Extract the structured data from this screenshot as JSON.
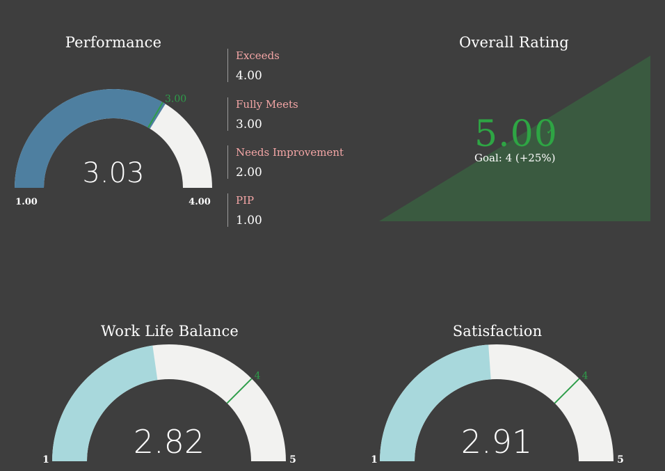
{
  "performance": {
    "title": "Performance",
    "value": 3.03,
    "value_label": "3.03",
    "min": 1,
    "max": 4,
    "min_label": "1.00",
    "max_label": "4.00",
    "target": 3.0,
    "target_label": "3.00",
    "fill_color": "#4e7fa0",
    "legend": [
      {
        "name": "Exceeds",
        "value": "4.00"
      },
      {
        "name": "Fully Meets",
        "value": "3.00"
      },
      {
        "name": "Needs Improvement",
        "value": "2.00"
      },
      {
        "name": "PIP",
        "value": "1.00"
      }
    ]
  },
  "overall_rating": {
    "title": "Overall Rating",
    "value": "5.00",
    "check_icon": "checkmark-icon",
    "goal": "Goal: 4 (+25%)",
    "area_color": "#3a5a40",
    "value_color": "#2ea544"
  },
  "work_life_balance": {
    "title": "Work Life Balance",
    "value": 2.82,
    "value_label": "2.82",
    "min": 1,
    "max": 5,
    "min_label": "1",
    "max_label": "5",
    "target": 4,
    "target_label": "4",
    "fill_color": "#a8d8dc"
  },
  "satisfaction": {
    "title": "Satisfaction",
    "value": 2.91,
    "value_label": "2.91",
    "min": 1,
    "max": 5,
    "min_label": "1",
    "max_label": "5",
    "target": 4,
    "target_label": "4",
    "fill_color": "#a8d8dc"
  },
  "colors": {
    "background": "#3e3e3e",
    "track": "#f2f2f0",
    "target_line": "#2e9e4a"
  }
}
